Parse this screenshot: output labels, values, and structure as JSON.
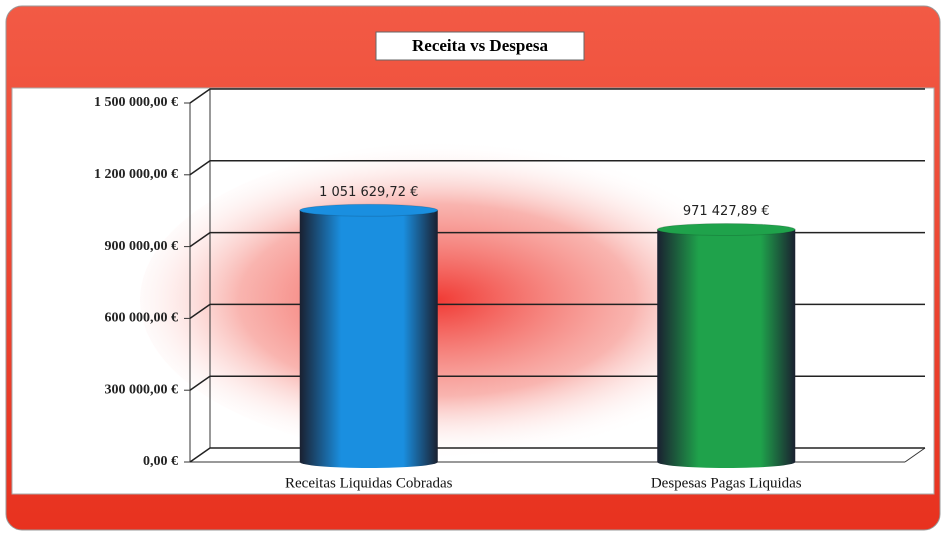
{
  "chart_data": {
    "type": "bar",
    "title": "Receita vs Despesa",
    "categories": [
      "Receitas Liquidas Cobradas",
      "Despesas Pagas Liquidas"
    ],
    "values": [
      1051629.72,
      971427.89
    ],
    "value_labels": [
      "1 051 629,72 €",
      "971 427,89 €"
    ],
    "colors": [
      "#1a8fe0",
      "#1fa24b"
    ],
    "ylim": [
      0,
      1500000
    ],
    "yticks": [
      {
        "value": 0,
        "label": "0,00 €"
      },
      {
        "value": 300000,
        "label": "300 000,00 €"
      },
      {
        "value": 600000,
        "label": "600 000,00 €"
      },
      {
        "value": 900000,
        "label": "900 000,00 €"
      },
      {
        "value": 1200000,
        "label": "1 200 000,00 €"
      },
      {
        "value": 1500000,
        "label": "1 500 000,00 €"
      }
    ],
    "grid": true
  }
}
